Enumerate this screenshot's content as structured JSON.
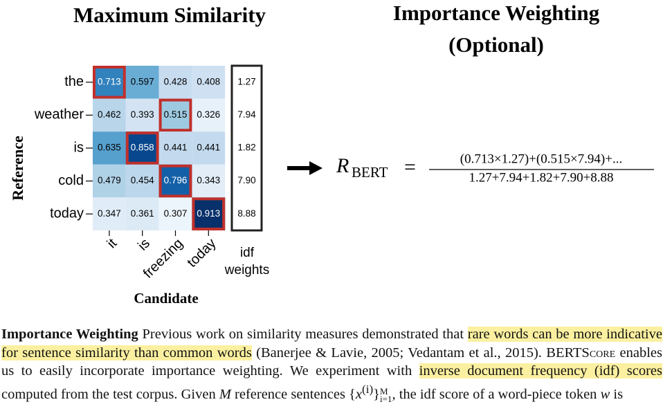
{
  "heatmap": {
    "title": "Maximum Similarity",
    "y_label": "Reference",
    "x_label": "Candidate",
    "rows": [
      "the",
      "weather",
      "is",
      "cold",
      "today"
    ],
    "columns": [
      "it",
      "is",
      "freezing",
      "today"
    ],
    "values": [
      [
        0.713,
        0.597,
        0.428,
        0.408
      ],
      [
        0.462,
        0.393,
        0.515,
        0.326
      ],
      [
        0.635,
        0.858,
        0.441,
        0.441
      ],
      [
        0.479,
        0.454,
        0.796,
        0.343
      ],
      [
        0.347,
        0.361,
        0.307,
        0.913
      ]
    ]
  },
  "idf": {
    "label_lines": [
      "idf",
      "weights"
    ],
    "values": [
      1.27,
      7.94,
      1.82,
      7.9,
      8.88
    ],
    "value_labels": [
      "1.27",
      "7.94",
      "1.82",
      "7.90",
      "8.88"
    ]
  },
  "importance": {
    "title_lines": [
      "Importance Weighting",
      "(Optional)"
    ]
  },
  "formula": {
    "lhs": "R",
    "lhs_sub": "BERT",
    "equals": "=",
    "numerator": "(0.713×1.27)+(0.515×7.94)+...",
    "denominator": "1.27+7.94+1.82+7.90+8.88"
  },
  "paragraph": [
    {
      "style": "bold",
      "text": "Importance Weighting"
    },
    {
      "style": "plain",
      "text": "   Previous work on similarity measures demonstrated that "
    },
    {
      "style": "highlight",
      "text": "rare words can be more indicative for sentence similarity than common words"
    },
    {
      "style": "plain",
      "text": " (Banerjee & Lavie, 2005; Vedantam et al., 2015). "
    },
    {
      "style": "smallcaps",
      "text": "BERTScore"
    },
    {
      "style": "plain",
      "text": " enables us to easily incorporate importance weighting. We experiment with "
    },
    {
      "style": "highlight",
      "text": "inverse document frequency (idf) scores"
    },
    {
      "style": "plain",
      "text": " computed from the test corpus. Given "
    },
    {
      "style": "italic",
      "text": "M"
    },
    {
      "style": "plain",
      "text": " reference sentences {"
    },
    {
      "style": "italic",
      "text": "x"
    },
    {
      "style": "sup",
      "text": "(i)"
    },
    {
      "style": "plain",
      "text": "}"
    },
    {
      "style": "script",
      "sup": "M",
      "sub": "i=1"
    },
    {
      "style": "plain",
      "text": ", the idf score of a word-piece token "
    },
    {
      "style": "italic",
      "text": "w"
    },
    {
      "style": "plain",
      "text": " is"
    }
  ]
}
